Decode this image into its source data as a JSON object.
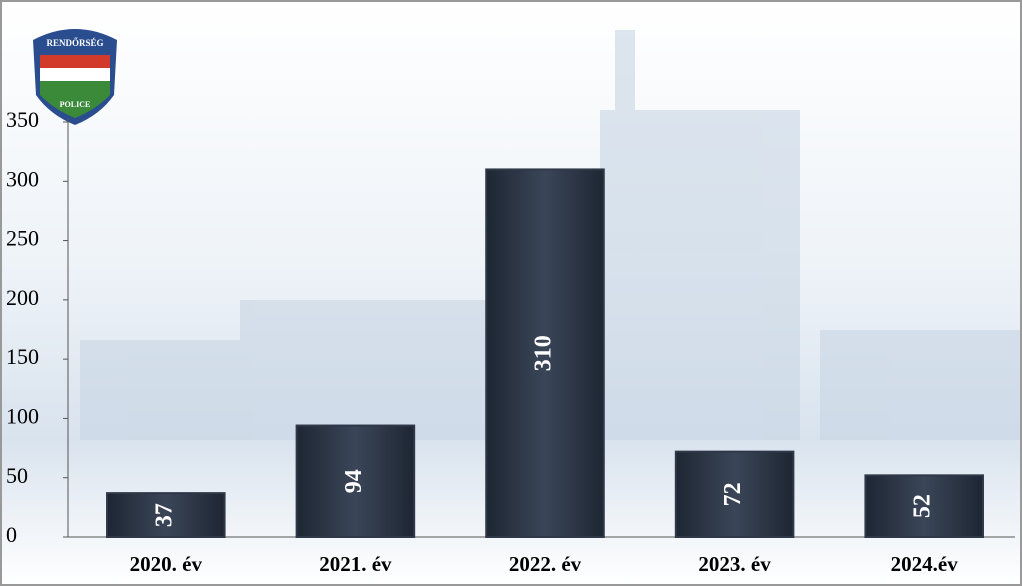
{
  "logo": {
    "top": "RENDŐRSÉG",
    "bottom": "POLICE"
  },
  "chart_data": {
    "type": "bar",
    "categories": [
      "2020. év",
      "2021. év",
      "2022. év",
      "2023. év",
      "2024.év"
    ],
    "values": [
      37,
      94,
      310,
      72,
      52
    ],
    "color": "#2e3848",
    "ylim": [
      0,
      350
    ],
    "yticks": [
      0,
      50,
      100,
      150,
      200,
      250,
      300,
      350
    ]
  }
}
